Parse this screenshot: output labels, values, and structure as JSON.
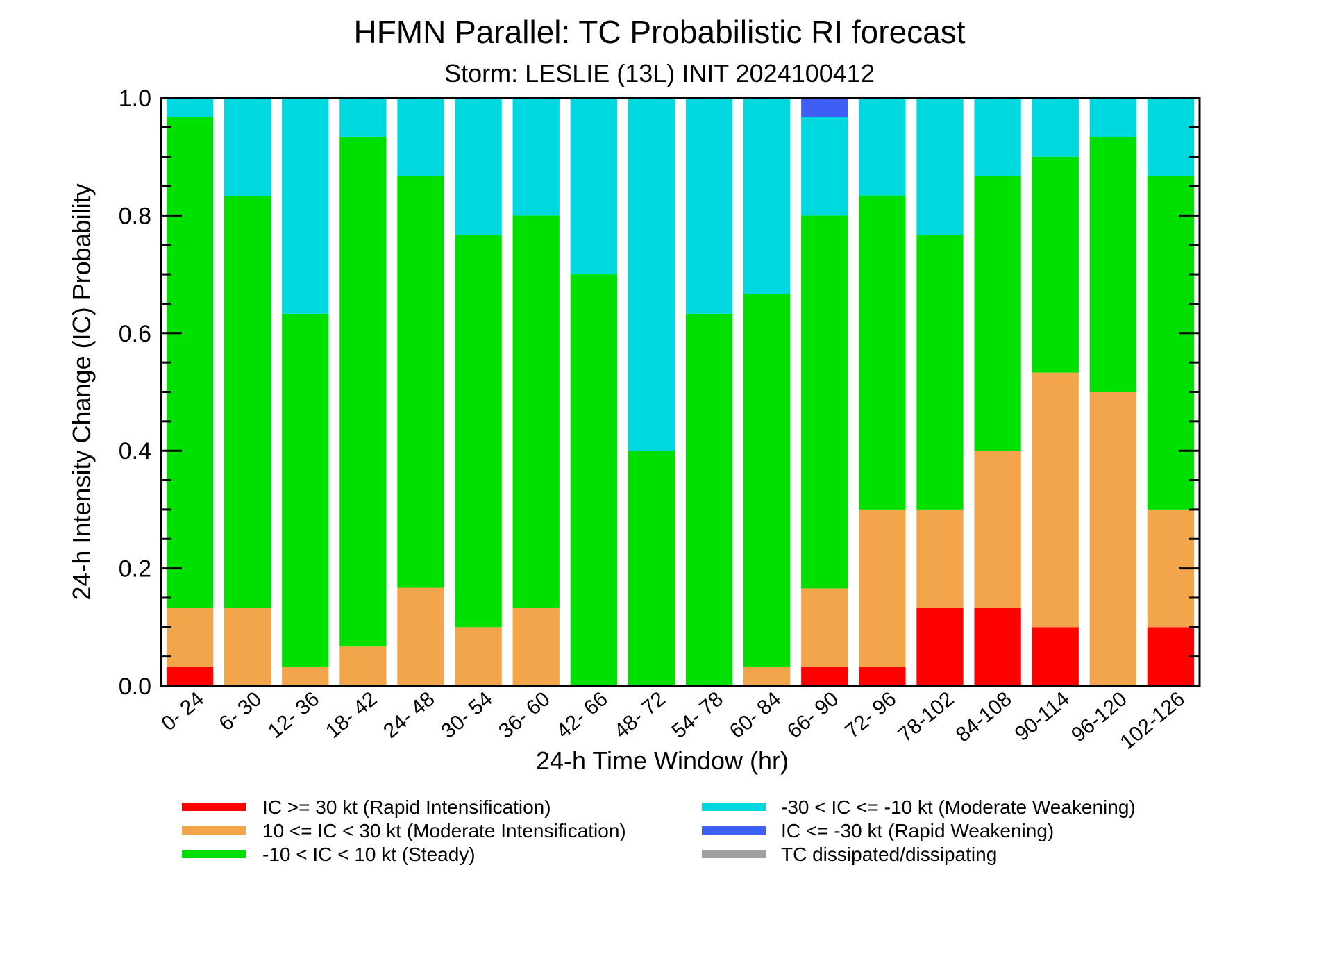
{
  "chart_data": {
    "type": "bar",
    "stacked": true,
    "title": "HFMN Parallel: TC Probabilistic RI forecast",
    "subtitle": "Storm: LESLIE (13L) INIT 2024100412",
    "xlabel": "24-h Time Window (hr)",
    "ylabel": "24-h Intensity Change (IC) Probability",
    "ylim": [
      0,
      1
    ],
    "yticks": [
      "0.0",
      "0.2",
      "0.4",
      "0.6",
      "0.8",
      "1.0"
    ],
    "categories": [
      "0- 24",
      "6- 30",
      "12- 36",
      "18- 42",
      "24- 48",
      "30- 54",
      "36- 60",
      "42- 66",
      "48- 72",
      "54- 78",
      "60- 84",
      "66- 90",
      "72- 96",
      "78-102",
      "84-108",
      "90-114",
      "96-120",
      "102-126"
    ],
    "series": [
      {
        "name": "IC >= 30 kt (Rapid Intensification)",
        "color": "#ff0000",
        "values": [
          0.033,
          0,
          0,
          0,
          0,
          0,
          0,
          0,
          0,
          0,
          0,
          0.033,
          0.033,
          0.133,
          0.133,
          0.1,
          0,
          0.1
        ]
      },
      {
        "name": "10 <= IC < 30 kt (Moderate Intensification)",
        "color": "#f2a54a",
        "values": [
          0.1,
          0.133,
          0.033,
          0.067,
          0.167,
          0.1,
          0.133,
          0,
          0,
          0,
          0.033,
          0.133,
          0.267,
          0.167,
          0.267,
          0.433,
          0.5,
          0.2
        ]
      },
      {
        "name": "-10 < IC < 10 kt (Steady)",
        "color": "#00e000",
        "values": [
          0.834,
          0.7,
          0.6,
          0.867,
          0.7,
          0.667,
          0.667,
          0.7,
          0.4,
          0.633,
          0.634,
          0.634,
          0.534,
          0.467,
          0.467,
          0.367,
          0.433,
          0.567
        ]
      },
      {
        "name": "-30 < IC <= -10 kt (Moderate Weakening)",
        "color": "#00d8e0",
        "values": [
          0.033,
          0.167,
          0.367,
          0.066,
          0.133,
          0.233,
          0.2,
          0.3,
          0.6,
          0.367,
          0.333,
          0.167,
          0.166,
          0.233,
          0.133,
          0.1,
          0.067,
          0.133
        ]
      },
      {
        "name": "IC <= -30 kt (Rapid Weakening)",
        "color": "#3d5ff5",
        "values": [
          0,
          0,
          0,
          0,
          0,
          0,
          0,
          0,
          0,
          0,
          0,
          0.033,
          0,
          0,
          0,
          0,
          0,
          0
        ]
      },
      {
        "name": "TC dissipated/dissipating",
        "color": "#a0a0a0",
        "values": [
          0,
          0,
          0,
          0,
          0,
          0,
          0,
          0,
          0,
          0,
          0,
          0,
          0,
          0,
          0,
          0,
          0,
          0
        ]
      }
    ],
    "legend": "bottom",
    "grid": false
  }
}
